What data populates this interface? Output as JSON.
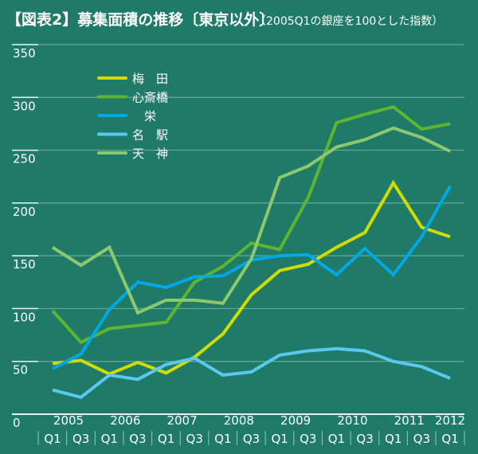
{
  "chart_data": {
    "type": "line",
    "title": "【図表2】募集面積の推移〔東京以外〕",
    "subtitle": "（2005Q1の銀座を100とした指数）",
    "x_quarters": [
      "Q1",
      "Q3",
      "Q1",
      "Q3",
      "Q1",
      "Q3",
      "Q1",
      "Q3",
      "Q1",
      "Q3",
      "Q1",
      "Q3",
      "Q1",
      "Q3",
      "Q1"
    ],
    "x_years": [
      "2005",
      "2006",
      "2007",
      "2008",
      "2009",
      "2010",
      "2011",
      "2012"
    ],
    "ylim": [
      0,
      350
    ],
    "yticks": [
      "0",
      "50",
      "100",
      "150",
      "200",
      "250",
      "300",
      "350"
    ],
    "grid": true,
    "legend_position": "top-left",
    "background": "#1f7b68",
    "series": [
      {
        "name": "梅　田",
        "color": "#cfdc00",
        "values": [
          48,
          51,
          38,
          49,
          39,
          54,
          76,
          113,
          136,
          142,
          158,
          172,
          219,
          177,
          168
        ]
      },
      {
        "name": "心斎橋",
        "color": "#5db532",
        "values": [
          98,
          68,
          81,
          84,
          87,
          125,
          140,
          162,
          156,
          205,
          276,
          284,
          291,
          270,
          275
        ]
      },
      {
        "name": "　栄",
        "color": "#00a8e6",
        "values": [
          43,
          57,
          99,
          125,
          120,
          130,
          131,
          146,
          150,
          151,
          132,
          157,
          132,
          168,
          216
        ]
      },
      {
        "name": "名　駅",
        "color": "#5bc8f0",
        "values": [
          23,
          16,
          37,
          33,
          47,
          53,
          37,
          40,
          56,
          60,
          62,
          60,
          50,
          45,
          34
        ]
      },
      {
        "name": "天　神",
        "color": "#8dc86e",
        "values": [
          158,
          141,
          158,
          96,
          108,
          108,
          105,
          147,
          224,
          235,
          253,
          260,
          271,
          262,
          249
        ]
      }
    ]
  }
}
